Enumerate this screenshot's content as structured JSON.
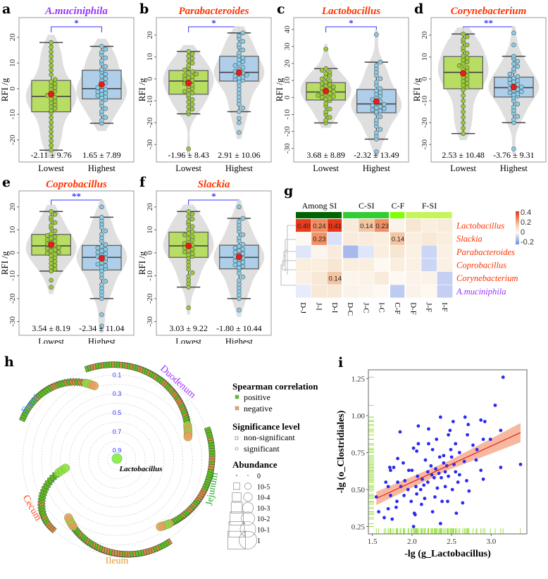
{
  "colors": {
    "low_fill": "#b3de55",
    "low_point": "#9acd32",
    "high_fill": "#a9cdeb",
    "high_point": "#87ceeb",
    "violin": "#dcdcdc",
    "mean": "#e0201a",
    "sig": "#3333ff",
    "title_red": "#ff3300",
    "title_purple": "#9933ff"
  },
  "box_panels": [
    {
      "letter": "a",
      "title": "A.muciniphila",
      "title_color": "#9933ff",
      "ylabel": "RFI /g",
      "ylim": [
        -28.6,
        27.7
      ],
      "yticks": [
        "-20",
        "-10",
        "0",
        "10",
        "20"
      ],
      "ytick_values": [
        -20,
        -10,
        0,
        10,
        20
      ],
      "sig": "*",
      "groups": [
        {
          "name": "Lowest",
          "stat": "-2.11 ± 9.76",
          "mean": -2.11,
          "q1": -9,
          "median": -3,
          "q3": 3.2,
          "whisker": [
            -24,
            18
          ],
          "outliers": []
        },
        {
          "name": "Highest",
          "stat": "1.65 ± 7.89",
          "mean": 1.65,
          "q1": -4,
          "median": 0,
          "q3": 7.2,
          "whisker": [
            -13.5,
            16.5
          ],
          "outliers": []
        }
      ]
    },
    {
      "letter": "b",
      "title": "Parabacteroides",
      "title_color": "#ff3300",
      "ylabel": "RFI /g",
      "ylim": [
        -38,
        28
      ],
      "yticks": [
        "-30",
        "-20",
        "-10",
        "0",
        "10",
        "20"
      ],
      "ytick_values": [
        -30,
        -20,
        -10,
        0,
        10,
        20
      ],
      "sig": "*",
      "groups": [
        {
          "name": "Lowest",
          "stat": "-1.96 ± 8.43",
          "mean": -1.96,
          "q1": -7,
          "median": -1,
          "q3": 3.8,
          "whisker": [
            -16,
            12.5
          ],
          "outliers": [
            -32
          ]
        },
        {
          "name": "Highest",
          "stat": "2.91 ± 10.06",
          "mean": 2.91,
          "q1": -1,
          "median": 3,
          "q3": 10.3,
          "whisker": [
            -15,
            21
          ],
          "outliers": [
            -18,
            -20,
            -24.5
          ]
        }
      ]
    },
    {
      "letter": "c",
      "title": "Lactobacillus",
      "title_color": "#ff3300",
      "ylabel": "RFI /g",
      "ylim": [
        -38,
        47
      ],
      "yticks": [
        "-30",
        "-20",
        "-10",
        "0",
        "10",
        "20",
        "30",
        "40"
      ],
      "ytick_values": [
        -30,
        -20,
        -10,
        0,
        10,
        20,
        30,
        40
      ],
      "sig": "*",
      "groups": [
        {
          "name": "Lowest",
          "stat": "3.68 ± 8.89",
          "mean": 3.68,
          "q1": -1.5,
          "median": 3.2,
          "q3": 8.7,
          "whisker": [
            -15,
            17
          ],
          "outliers": [
            28.5
          ]
        },
        {
          "name": "Highest",
          "stat": "-2.32 ± 13.49",
          "mean": -2.32,
          "q1": -9,
          "median": -3.8,
          "q3": 4.7,
          "whisker": [
            -24.5,
            20.8
          ],
          "outliers": [
            37,
            -32
          ]
        }
      ]
    },
    {
      "letter": "d",
      "title": "Corynebacterium",
      "title_color": "#ff3300",
      "ylabel": "RFI /g",
      "ylim": [
        -38,
        28
      ],
      "yticks": [
        "-30",
        "-20",
        "-10",
        "0",
        "10",
        "20"
      ],
      "ytick_values": [
        -30,
        -20,
        -10,
        0,
        10,
        20
      ],
      "sig": "**",
      "groups": [
        {
          "name": "Lowest",
          "stat": "2.53 ± 10.48",
          "mean": 2.53,
          "q1": -4.5,
          "median": 3,
          "q3": 10.2,
          "whisker": [
            -25,
            20.5
          ],
          "outliers": []
        },
        {
          "name": "Highest",
          "stat": "-3.76 ± 9.31",
          "mean": -3.76,
          "q1": -8.3,
          "median": -4,
          "q3": 0.8,
          "whisker": [
            -20,
            10.3
          ],
          "outliers": [
            15.5,
            21,
            -32
          ]
        }
      ]
    },
    {
      "letter": "e",
      "title": "Coprobacillus",
      "title_color": "#ff3300",
      "ylabel": "RFI /g",
      "ylim": [
        -36,
        27
      ],
      "yticks": [
        "-30",
        "-20",
        "-10",
        "0",
        "10",
        "20"
      ],
      "ytick_values": [
        -30,
        -20,
        -10,
        0,
        10,
        20
      ],
      "sig": "**",
      "groups": [
        {
          "name": "Lowest",
          "stat": "3.54 ± 8.19",
          "mean": 3.54,
          "q1": -1,
          "median": 3,
          "q3": 8,
          "whisker": [
            -8,
            18
          ],
          "outliers": [
            -12,
            -15
          ]
        },
        {
          "name": "Highest",
          "stat": "-2.34 ± 11.04",
          "mean": -2.34,
          "q1": -7.5,
          "median": -2,
          "q3": 3.2,
          "whisker": [
            -20,
            15.5
          ],
          "outliers": [
            20,
            -27,
            -32
          ]
        }
      ]
    },
    {
      "letter": "f",
      "title": "Slackia",
      "title_color": "#ff3300",
      "ylabel": "RFI /g",
      "ylim": [
        -36,
        27
      ],
      "yticks": [
        "-30",
        "-20",
        "-10",
        "0",
        "10",
        "20"
      ],
      "ytick_values": [
        -30,
        -20,
        -10,
        0,
        10,
        20
      ],
      "sig": "*",
      "groups": [
        {
          "name": "Lowest",
          "stat": "3.03 ± 9.22",
          "mean": 3.03,
          "q1": -2,
          "median": 3,
          "q3": 9,
          "whisker": [
            -15,
            18
          ],
          "outliers": [
            -24
          ]
        },
        {
          "name": "Highest",
          "stat": "-1.80 ± 10.44",
          "mean": -1.8,
          "q1": -7,
          "median": -2,
          "q3": 3.3,
          "whisker": [
            -20,
            15
          ],
          "outliers": [
            20,
            -25
          ]
        }
      ]
    }
  ],
  "heatmap": {
    "letter": "g",
    "groups": [
      {
        "label": "Among SI",
        "span": 3,
        "color": "#006400"
      },
      {
        "label": "C-SI",
        "span": 3,
        "color": "#33cc33"
      },
      {
        "label": "C-F",
        "span": 1,
        "color": "#80ff00"
      },
      {
        "label": "F-SI",
        "span": 3,
        "color": "#c6f55a"
      }
    ],
    "columns": [
      "D-J",
      "J-I",
      "D-I",
      "D-C",
      "J-C",
      "I-C",
      "C-F",
      "D-F",
      "J-F",
      "I-F"
    ],
    "rows": [
      {
        "label": "Lactobacillus",
        "color": "#ff3300"
      },
      {
        "label": "Slackia",
        "color": "#ff3300"
      },
      {
        "label": "Parabacteroides",
        "color": "#ff3300"
      },
      {
        "label": "Coprobacillus",
        "color": "#ff3300"
      },
      {
        "label": "Corynebacterium",
        "color": "#ff3300"
      },
      {
        "label": "A.muciniphila",
        "color": "#9933ff"
      }
    ],
    "values": [
      [
        0.4,
        0.24,
        0.41,
        0.05,
        0.14,
        0.23,
        0.02,
        0.07,
        0.04,
        0.05
      ],
      [
        0.0,
        0.23,
        -0.05,
        0.05,
        0.05,
        0.04,
        0.14,
        0.04,
        0.06,
        0.04
      ],
      [
        -0.04,
        0.01,
        0.05,
        -0.12,
        -0.04,
        0.04,
        0.07,
        0.03,
        -0.07,
        0.03
      ],
      [
        0.04,
        0.04,
        0.07,
        0.04,
        0.04,
        0.0,
        0.04,
        0.03,
        -0.07,
        0.03
      ],
      [
        0.03,
        0.06,
        0.14,
        0.01,
        0.02,
        0.05,
        0.0,
        0.02,
        0.02,
        -0.08
      ],
      [
        -0.03,
        0.06,
        0.06,
        0.02,
        0.01,
        0.0,
        -0.09,
        0.02,
        0.0,
        -0.08
      ]
    ],
    "labels": [
      [
        "0.40",
        "0.24",
        "0.41",
        "",
        "0.14",
        "0.23",
        "",
        "",
        "",
        ""
      ],
      [
        "",
        "0.23",
        "",
        "",
        "",
        "",
        "0.14",
        "",
        "",
        ""
      ],
      [
        "",
        "",
        "",
        "",
        "",
        "",
        "",
        "",
        "",
        ""
      ],
      [
        "",
        "",
        "",
        "",
        "",
        "",
        "",
        "",
        "",
        ""
      ],
      [
        "",
        "",
        "0.14",
        "",
        "",
        "",
        "",
        "",
        "",
        ""
      ],
      [
        "",
        "",
        "",
        "",
        "",
        "",
        "",
        "",
        "",
        ""
      ]
    ],
    "legend": [
      "0.4",
      "0.2",
      "0",
      "-0.2"
    ]
  },
  "circular": {
    "letter": "h",
    "center_label": "Lactobacillus",
    "ring_labels": [
      "0.1",
      "0.3",
      "0.5",
      "0.7",
      "0.9"
    ],
    "sites": [
      {
        "name": "Duodenum",
        "color": "#9933ff"
      },
      {
        "name": "Jejunum",
        "color": "#22aa22"
      },
      {
        "name": "Ileum",
        "color": "#e69a28"
      },
      {
        "name": "Cecum",
        "color": "#ff4422"
      },
      {
        "name": "Feces",
        "color": "#3399ff"
      }
    ],
    "legend": {
      "corr_title": "Spearman correlation",
      "positive": "positive",
      "negative": "negative",
      "sig_title": "Significance level",
      "nonsig": "non-significant",
      "sig": "significant",
      "abund_title": "Abundance",
      "abund_levels": [
        "0",
        "10-5",
        "10-4",
        "10-3",
        "10-2",
        "10-1",
        "1"
      ]
    }
  },
  "chart_data": {
    "type": "scatter",
    "letter": "i",
    "xlabel": "-lg (g_Lactobacillus)",
    "ylabel": "-lg (o_Clostridiales)",
    "xlim": [
      1.45,
      3.45
    ],
    "ylim": [
      0.2,
      1.31
    ],
    "xticks": [
      "1.5",
      "2.0",
      "2.5",
      "3.0"
    ],
    "xtick_values": [
      1.5,
      2.0,
      2.5,
      3.0
    ],
    "yticks": [
      "0.25",
      "0.50",
      "0.75",
      "1.00",
      "1.25"
    ],
    "ytick_values": [
      0.25,
      0.5,
      0.75,
      1.0,
      1.25
    ],
    "fit": {
      "x": [
        1.55,
        3.37
      ],
      "y": [
        0.44,
        0.885
      ],
      "ci_halfwidth": [
        0.045,
        0.03,
        0.065
      ]
    },
    "points": [
      [
        3.15,
        1.26
      ],
      [
        3.05,
        1.07
      ],
      [
        2.36,
        0.99
      ],
      [
        2.67,
        0.99
      ],
      [
        2.87,
        0.97
      ],
      [
        2.92,
        0.96
      ],
      [
        2.52,
        0.96
      ],
      [
        2.71,
        0.94
      ],
      [
        2.08,
        0.93
      ],
      [
        2.21,
        0.91
      ],
      [
        3.12,
        0.9
      ],
      [
        1.85,
        0.89
      ],
      [
        2.48,
        0.9
      ],
      [
        2.46,
        0.87
      ],
      [
        2.7,
        0.87
      ],
      [
        2.99,
        0.84
      ],
      [
        2.31,
        0.84
      ],
      [
        2.9,
        0.84
      ],
      [
        2.08,
        0.81
      ],
      [
        2.21,
        0.81
      ],
      [
        2.55,
        0.81
      ],
      [
        2.77,
        0.8
      ],
      [
        2.02,
        0.78
      ],
      [
        2.26,
        0.77
      ],
      [
        2.49,
        0.77
      ],
      [
        2.82,
        0.77
      ],
      [
        2.06,
        0.76
      ],
      [
        2.35,
        0.72
      ],
      [
        2.6,
        0.75
      ],
      [
        1.82,
        0.71
      ],
      [
        2.4,
        0.73
      ],
      [
        1.89,
        0.68
      ],
      [
        2.17,
        0.7
      ],
      [
        2.66,
        0.69
      ],
      [
        2.81,
        0.7
      ],
      [
        2.44,
        0.66
      ],
      [
        1.72,
        0.65
      ],
      [
        1.77,
        0.65
      ],
      [
        2.0,
        0.63
      ],
      [
        2.3,
        0.64
      ],
      [
        3.12,
        0.65
      ],
      [
        3.37,
        0.67
      ],
      [
        2.87,
        0.63
      ],
      [
        1.96,
        0.63
      ],
      [
        2.07,
        0.59
      ],
      [
        2.25,
        0.6
      ],
      [
        2.55,
        0.62
      ],
      [
        1.73,
        0.63
      ],
      [
        1.67,
        0.55
      ],
      [
        1.82,
        0.55
      ],
      [
        1.91,
        0.56
      ],
      [
        2.13,
        0.57
      ],
      [
        2.37,
        0.58
      ],
      [
        2.46,
        0.59
      ],
      [
        2.9,
        0.57
      ],
      [
        2.69,
        0.56
      ],
      [
        1.55,
        0.45
      ],
      [
        1.7,
        0.52
      ],
      [
        1.86,
        0.52
      ],
      [
        2.05,
        0.52
      ],
      [
        2.2,
        0.55
      ],
      [
        2.42,
        0.52
      ],
      [
        2.58,
        0.55
      ],
      [
        1.95,
        0.5
      ],
      [
        2.11,
        0.5
      ],
      [
        2.32,
        0.51
      ],
      [
        2.51,
        0.5
      ],
      [
        2.72,
        0.49
      ],
      [
        1.73,
        0.46
      ],
      [
        1.9,
        0.46
      ],
      [
        2.06,
        0.47
      ],
      [
        2.16,
        0.44
      ],
      [
        2.38,
        0.42
      ],
      [
        2.45,
        0.42
      ],
      [
        1.81,
        0.42
      ],
      [
        1.99,
        0.42
      ],
      [
        2.12,
        0.4
      ],
      [
        2.26,
        0.35
      ],
      [
        1.8,
        0.38
      ],
      [
        1.58,
        0.35
      ],
      [
        1.7,
        0.37
      ],
      [
        2.03,
        0.34
      ],
      [
        2.04,
        0.33
      ],
      [
        2.56,
        0.34
      ],
      [
        2.64,
        0.41
      ],
      [
        1.65,
        0.31
      ],
      [
        1.75,
        0.3
      ],
      [
        2.02,
        0.25
      ],
      [
        2.36,
        0.27
      ],
      [
        2.29,
        0.45
      ],
      [
        2.2,
        0.62
      ],
      [
        2.6,
        0.6
      ],
      [
        2.4,
        0.68
      ],
      [
        2.5,
        0.72
      ],
      [
        2.28,
        0.58
      ],
      [
        2.34,
        0.61
      ],
      [
        2.15,
        0.53
      ],
      [
        2.24,
        0.66
      ],
      [
        2.42,
        0.62
      ],
      [
        2.53,
        0.67
      ]
    ]
  }
}
